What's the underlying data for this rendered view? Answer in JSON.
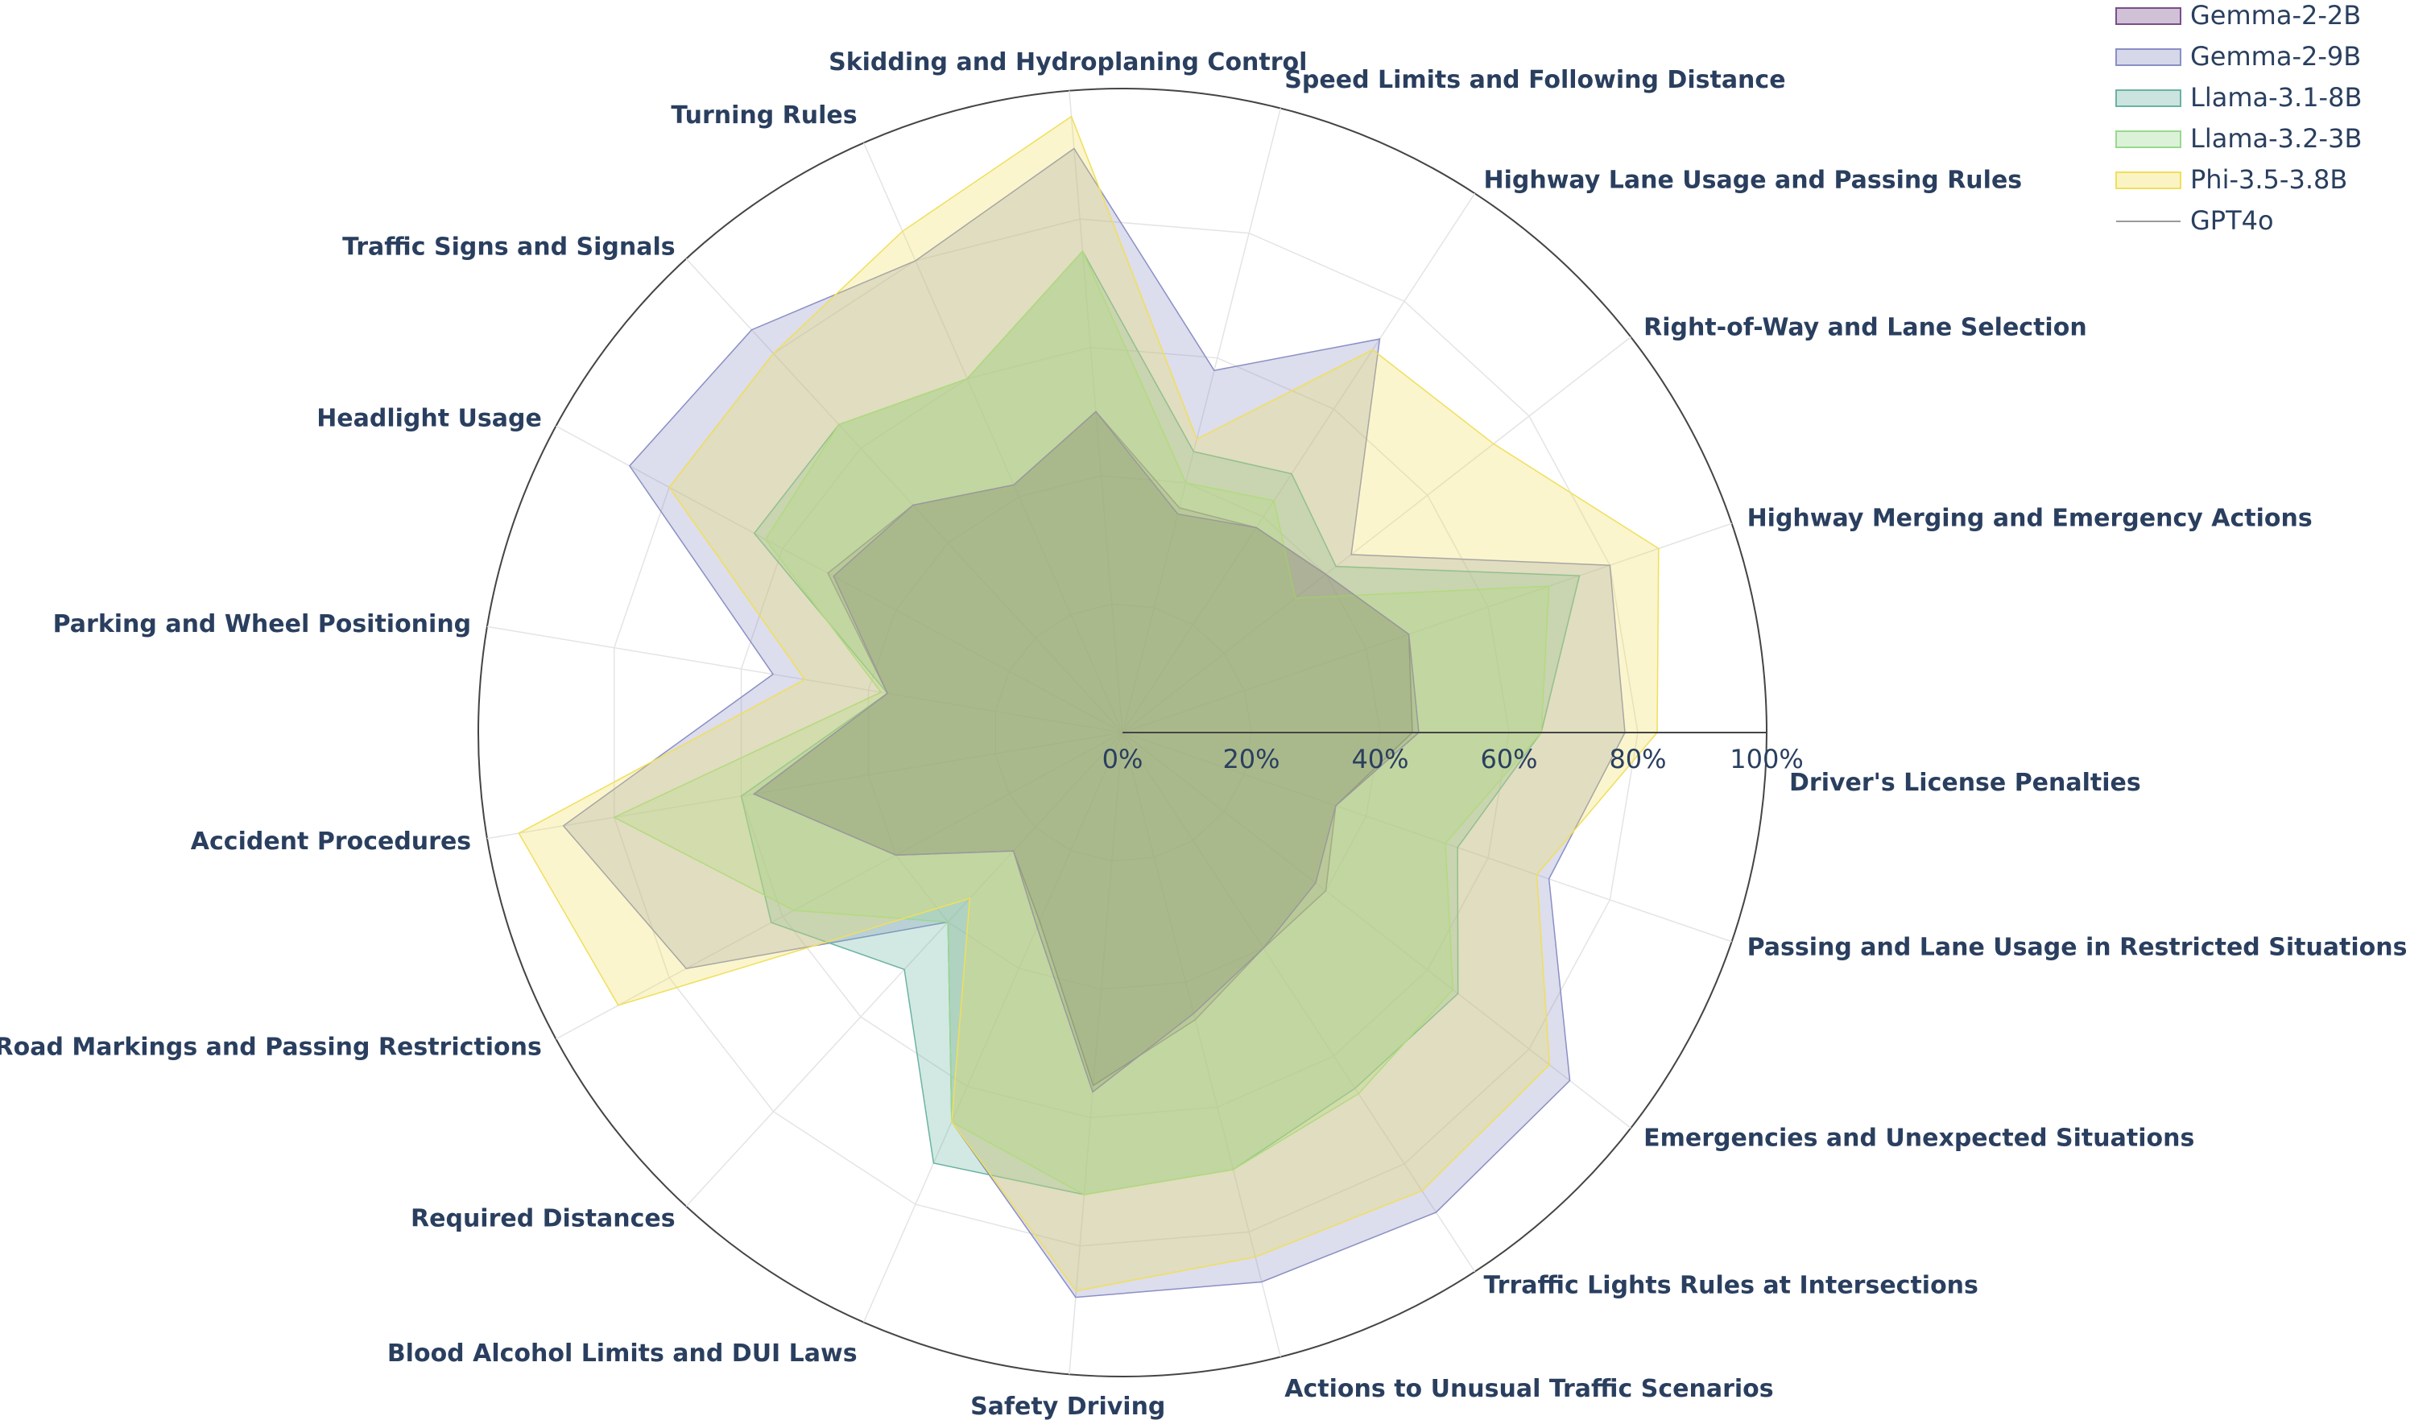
{
  "chart_data": {
    "type": "radar",
    "title": "",
    "angular_direction": "clockwise",
    "radial_range": [
      0,
      100
    ],
    "radial_ticks": [
      0,
      20,
      40,
      60,
      80,
      100
    ],
    "radial_tick_labels": [
      "0%",
      "20%",
      "40%",
      "60%",
      "80%",
      "100%"
    ],
    "legend_position": "top-right",
    "categories": [
      "Driver's License Penalties",
      "Passing and Lane Usage in Restricted Situations",
      "Emergencies and Unexpected Situations",
      "Trraffic Lights Rules at Intersections",
      "Actions to Unusual Traffic Scenarios",
      "Safety Driving",
      "Blood Alcohol Limits and DUI Laws",
      "Required Distances",
      "Road Markings and Passing Restrictions",
      "Accident Procedures",
      "Parking and Wheel Positioning",
      "Headlight Usage",
      "Traffic Signs and Signals",
      "Turning Rules",
      "Skidding and Hydroplaning Control",
      "Speed Limits and Following Distance",
      "Highway Lane Usage and Passing Rules",
      "Right-of-Way and Lane Selection",
      "Highway Merging and Emergency Actions"
    ],
    "series": [
      {
        "name": "Gemma-2-2B",
        "color": "#7b4d8c",
        "values": [
          45,
          35,
          40,
          40,
          46,
          55,
          32,
          25,
          40,
          58,
          37,
          52,
          48,
          42,
          50,
          36,
          38,
          40,
          47
        ]
      },
      {
        "name": "Gemma-2-9B",
        "color": "#8a8fc4",
        "values": [
          78,
          70,
          88,
          89,
          88,
          88,
          66,
          40,
          77,
          88,
          55,
          87,
          85,
          80,
          91,
          58,
          73,
          45,
          80
        ]
      },
      {
        "name": "Llama-3.1-8B",
        "color": "#6ab3a2",
        "values": [
          65,
          55,
          66,
          66,
          70,
          72,
          73,
          50,
          62,
          60,
          37,
          65,
          65,
          60,
          75,
          45,
          48,
          42,
          75
        ]
      },
      {
        "name": "Llama-3.2-3B",
        "color": "#98d98e",
        "values": [
          65,
          53,
          65,
          67,
          70,
          72,
          66,
          40,
          58,
          80,
          38,
          63,
          65,
          60,
          75,
          40,
          43,
          34,
          70
        ]
      },
      {
        "name": "Phi-3.5-3.8B",
        "color": "#f0df5a",
        "values": [
          83,
          68,
          84,
          85,
          84,
          87,
          66,
          35,
          89,
          95,
          50,
          80,
          80,
          85,
          96,
          47,
          71,
          73,
          88
        ]
      },
      {
        "name": "GPT4o",
        "color": "#9a9a9a",
        "values": [
          46,
          35,
          38,
          40,
          45,
          56,
          33,
          25,
          40,
          58,
          37,
          51,
          48,
          42,
          50,
          35,
          38,
          40,
          47
        ]
      }
    ]
  }
}
